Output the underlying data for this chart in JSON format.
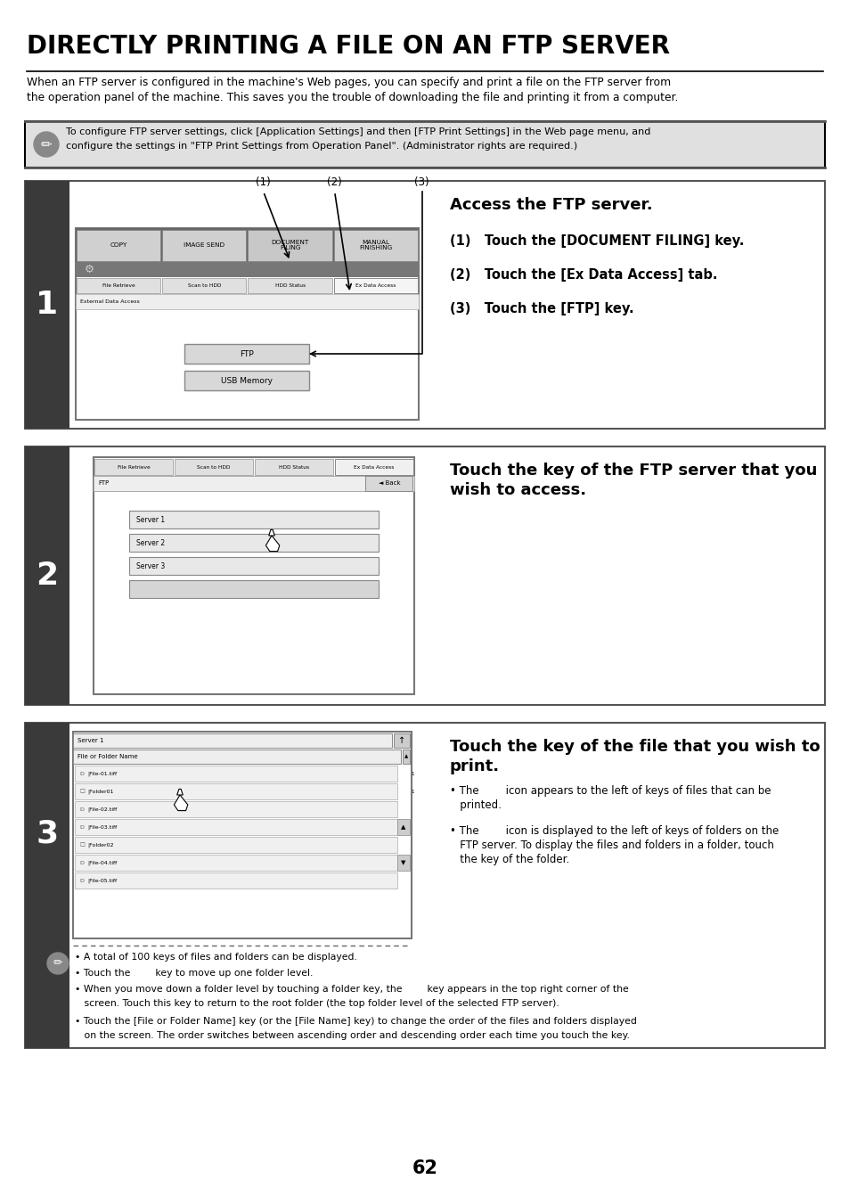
{
  "title": "DIRECTLY PRINTING A FILE ON AN FTP SERVER",
  "intro_line1": "When an FTP server is configured in the machine's Web pages, you can specify and print a file on the FTP server from",
  "intro_line2": "the operation panel of the machine. This saves you the trouble of downloading the file and printing it from a computer.",
  "note_line1": "To configure FTP server settings, click [Application Settings] and then [FTP Print Settings] in the Web page menu, and",
  "note_line2": "configure the settings in \"FTP Print Settings from Operation Panel\". (Administrator rights are required.)",
  "step1_number": "1",
  "step1_heading": "Access the FTP server.",
  "step1_sub1": "(1)   Touch the [DOCUMENT FILING] key.",
  "step1_sub2": "(2)   Touch the [Ex Data Access] tab.",
  "step1_sub3": "(3)   Touch the [FTP] key.",
  "step2_number": "2",
  "step2_heading1": "Touch the key of the FTP server that you",
  "step2_heading2": "wish to access.",
  "step3_number": "3",
  "step3_heading1": "Touch the key of the file that you wish to",
  "step3_heading2": "print.",
  "step3_bullet1a": "• The        icon appears to the left of keys of files that can be",
  "step3_bullet1b": "   printed.",
  "step3_bullet2a": "• The        icon is displayed to the left of keys of folders on the",
  "step3_bullet2b": "   FTP server. To display the files and folders in a folder, touch",
  "step3_bullet2c": "   the key of the folder.",
  "note3_1": "• A total of 100 keys of files and folders can be displayed.",
  "note3_2": "• Touch the        key to move up one folder level.",
  "note3_3a": "• When you move down a folder level by touching a folder key, the        key appears in the top right corner of the",
  "note3_3b": "   screen. Touch this key to return to the root folder (the top folder level of the selected FTP server).",
  "note3_4a": "• Touch the [File or Folder Name] key (or the [File Name] key) to change the order of the files and folders displayed",
  "note3_4b": "   on the screen. The order switches between ascending order and descending order each time you touch the key.",
  "page_number": "62",
  "tabs1": [
    "COPY",
    "IMAGE SEND",
    "DOCUMENT\nFILING",
    "MANUAL\nFINISHING"
  ],
  "sub_tabs": [
    "File Retrieve",
    "Scan to HDD",
    "HDD Status",
    "Ex Data Access"
  ],
  "servers": [
    "Server 1",
    "Server 2",
    "Server 3",
    ""
  ],
  "file_items": [
    [
      "p",
      "File-01.tiff"
    ],
    [
      "f",
      "Folder01"
    ],
    [
      "p",
      "File-02.tiff"
    ],
    [
      "p",
      "File-03.tiff"
    ],
    [
      "f",
      "Folder02"
    ],
    [
      "p",
      "File-04.tiff"
    ],
    [
      "p",
      "File-05.tiff"
    ]
  ]
}
